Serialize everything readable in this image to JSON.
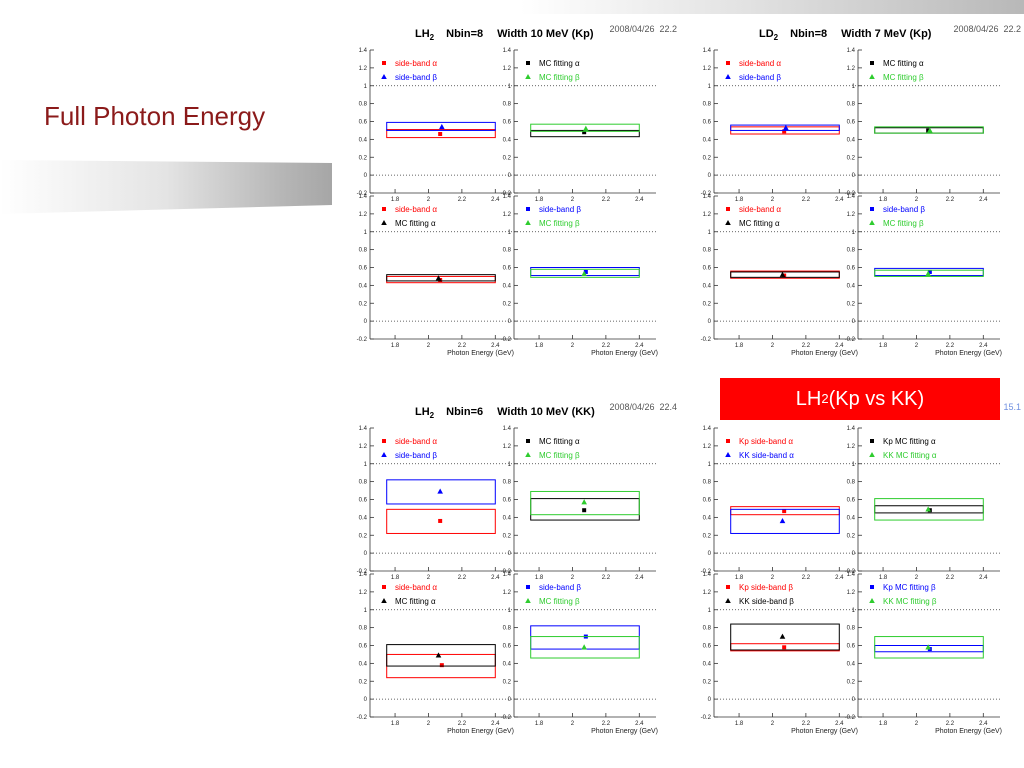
{
  "slide": {
    "title": "Full Photon Energy",
    "title_color": "#8b1a1a",
    "highlight": {
      "base": "LH",
      "sub": "2",
      "rest": "(Kp vs KK)",
      "background": "#ff0000"
    }
  },
  "chart_data": [
    {
      "type": "scatter",
      "title": {
        "base": "LH",
        "sub": "2",
        "nbin": "Nbin=8",
        "width": "Width 10 MeV (Kp)"
      },
      "timestamp": "2008/04/26  22.2",
      "timestamp_color": "#555555",
      "xlabel": "Photon Energy (GeV)",
      "xlim": [
        1.65,
        2.5
      ],
      "ylim": [
        -0.2,
        1.4
      ],
      "x_ticks": [
        "1.8",
        "2",
        "2.2",
        "2.4"
      ],
      "y_ticks": [
        "1.4",
        "1.2",
        "1",
        "0.8",
        "0.6",
        "0.4",
        "0.2",
        "0",
        "-0.2"
      ],
      "reference_lines_y": [
        0,
        1
      ],
      "band_x": [
        1.75,
        2.4
      ],
      "subplots": [
        {
          "position": "top-left",
          "series": [
            {
              "name": "side-band α",
              "color": "#ff0000",
              "marker": "square",
              "x": 2.07,
              "y": 0.46,
              "band": [
                0.42,
                0.51
              ]
            },
            {
              "name": "side-band β",
              "color": "#0000ff",
              "marker": "triangle",
              "x": 2.08,
              "y": 0.54,
              "band": [
                0.5,
                0.59
              ]
            }
          ]
        },
        {
          "position": "top-right",
          "series": [
            {
              "name": "MC fitting α",
              "color": "#000000",
              "marker": "square",
              "x": 2.07,
              "y": 0.48,
              "band": [
                0.43,
                0.5
              ]
            },
            {
              "name": "MC fitting β",
              "color": "#2ecc2e",
              "marker": "triangle",
              "x": 2.08,
              "y": 0.52,
              "band": [
                0.49,
                0.57
              ]
            }
          ]
        },
        {
          "position": "bottom-left",
          "series": [
            {
              "name": "side-band α",
              "color": "#ff0000",
              "marker": "square",
              "x": 2.07,
              "y": 0.46,
              "band": [
                0.43,
                0.5
              ]
            },
            {
              "name": "MC fitting α",
              "color": "#000000",
              "marker": "triangle",
              "x": 2.06,
              "y": 0.48,
              "band": [
                0.45,
                0.52
              ]
            }
          ]
        },
        {
          "position": "bottom-right",
          "series": [
            {
              "name": "side-band β",
              "color": "#0000ff",
              "marker": "square",
              "x": 2.08,
              "y": 0.55,
              "band": [
                0.51,
                0.6
              ]
            },
            {
              "name": "MC fitting β",
              "color": "#2ecc2e",
              "marker": "triangle",
              "x": 2.07,
              "y": 0.53,
              "band": [
                0.49,
                0.58
              ]
            }
          ]
        }
      ]
    },
    {
      "type": "scatter",
      "title": {
        "base": "LD",
        "sub": "2",
        "nbin": "Nbin=8",
        "width": "Width 7 MeV (Kp)"
      },
      "timestamp": "2008/04/26  22.2",
      "timestamp_color": "#555555",
      "xlabel": "Photon Energy (GeV)",
      "xlim": [
        1.65,
        2.5
      ],
      "ylim": [
        -0.2,
        1.4
      ],
      "x_ticks": [
        "1.8",
        "2",
        "2.2",
        "2.4"
      ],
      "y_ticks": [
        "1.4",
        "1.2",
        "1",
        "0.8",
        "0.6",
        "0.4",
        "0.2",
        "0",
        "-0.2"
      ],
      "reference_lines_y": [
        0,
        1
      ],
      "band_x": [
        1.75,
        2.4
      ],
      "subplots": [
        {
          "position": "top-left",
          "series": [
            {
              "name": "side-band α",
              "color": "#ff0000",
              "marker": "square",
              "x": 2.07,
              "y": 0.49,
              "band": [
                0.46,
                0.54
              ]
            },
            {
              "name": "side-band β",
              "color": "#0000ff",
              "marker": "triangle",
              "x": 2.08,
              "y": 0.53,
              "band": [
                0.5,
                0.56
              ]
            }
          ]
        },
        {
          "position": "top-right",
          "series": [
            {
              "name": "MC fitting α",
              "color": "#000000",
              "marker": "square",
              "x": 2.07,
              "y": 0.5,
              "band": [
                0.47,
                0.53
              ]
            },
            {
              "name": "MC fitting β",
              "color": "#2ecc2e",
              "marker": "triangle",
              "x": 2.08,
              "y": 0.5,
              "band": [
                0.47,
                0.54
              ]
            }
          ]
        },
        {
          "position": "bottom-left",
          "series": [
            {
              "name": "side-band α",
              "color": "#ff0000",
              "marker": "square",
              "x": 2.07,
              "y": 0.51,
              "band": [
                0.48,
                0.56
              ]
            },
            {
              "name": "MC fitting α",
              "color": "#000000",
              "marker": "triangle",
              "x": 2.06,
              "y": 0.52,
              "band": [
                0.49,
                0.55
              ]
            }
          ]
        },
        {
          "position": "bottom-right",
          "series": [
            {
              "name": "side-band β",
              "color": "#0000ff",
              "marker": "square",
              "x": 2.08,
              "y": 0.55,
              "band": [
                0.51,
                0.59
              ]
            },
            {
              "name": "MC fitting β",
              "color": "#2ecc2e",
              "marker": "triangle",
              "x": 2.07,
              "y": 0.53,
              "band": [
                0.5,
                0.57
              ]
            }
          ]
        }
      ]
    },
    {
      "type": "scatter",
      "title": {
        "base": "LH",
        "sub": "2",
        "nbin": "Nbin=6",
        "width": "Width 10 MeV (KK)"
      },
      "timestamp": "2008/04/26  22.4",
      "timestamp_color": "#555555",
      "xlabel": "Photon Energy (GeV)",
      "xlim": [
        1.65,
        2.5
      ],
      "ylim": [
        -0.2,
        1.4
      ],
      "x_ticks": [
        "1.8",
        "2",
        "2.2",
        "2.4"
      ],
      "y_ticks": [
        "1.4",
        "1.2",
        "1",
        "0.8",
        "0.6",
        "0.4",
        "0.2",
        "0",
        "-0.2"
      ],
      "reference_lines_y": [
        0,
        1
      ],
      "band_x": [
        1.75,
        2.4
      ],
      "subplots": [
        {
          "position": "top-left",
          "series": [
            {
              "name": "side-band α",
              "color": "#ff0000",
              "marker": "square",
              "x": 2.07,
              "y": 0.36,
              "band": [
                0.22,
                0.49
              ]
            },
            {
              "name": "side-band β",
              "color": "#0000ff",
              "marker": "triangle",
              "x": 2.07,
              "y": 0.69,
              "band": [
                0.55,
                0.82
              ]
            }
          ]
        },
        {
          "position": "top-right",
          "series": [
            {
              "name": "MC fitting α",
              "color": "#000000",
              "marker": "square",
              "x": 2.07,
              "y": 0.48,
              "band": [
                0.37,
                0.61
              ]
            },
            {
              "name": "MC fitting β",
              "color": "#2ecc2e",
              "marker": "triangle",
              "x": 2.07,
              "y": 0.57,
              "band": [
                0.43,
                0.69
              ]
            }
          ]
        },
        {
          "position": "bottom-left",
          "series": [
            {
              "name": "side-band α",
              "color": "#ff0000",
              "marker": "square",
              "x": 2.08,
              "y": 0.38,
              "band": [
                0.24,
                0.5
              ]
            },
            {
              "name": "MC fitting α",
              "color": "#000000",
              "marker": "triangle",
              "x": 2.06,
              "y": 0.49,
              "band": [
                0.37,
                0.61
              ]
            }
          ]
        },
        {
          "position": "bottom-right",
          "series": [
            {
              "name": "side-band β",
              "color": "#0000ff",
              "marker": "square",
              "x": 2.08,
              "y": 0.7,
              "band": [
                0.56,
                0.82
              ]
            },
            {
              "name": "MC fitting β",
              "color": "#2ecc2e",
              "marker": "triangle",
              "x": 2.07,
              "y": 0.58,
              "band": [
                0.46,
                0.7
              ]
            }
          ]
        }
      ]
    },
    {
      "type": "scatter",
      "timestamp": "15.1",
      "timestamp_color": "#7090e0",
      "xlabel": "Photon Energy (GeV)",
      "xlim": [
        1.65,
        2.5
      ],
      "ylim": [
        -0.2,
        1.4
      ],
      "x_ticks": [
        "1.8",
        "2",
        "2.2",
        "2.4"
      ],
      "y_ticks": [
        "1.4",
        "1.2",
        "1",
        "0.8",
        "0.6",
        "0.4",
        "0.2",
        "0",
        "-0.2"
      ],
      "reference_lines_y": [
        0,
        1
      ],
      "band_x": [
        1.75,
        2.4
      ],
      "subplots": [
        {
          "position": "top-left",
          "series": [
            {
              "name": "Kp side-band α",
              "color": "#ff0000",
              "marker": "square",
              "x": 2.07,
              "y": 0.47,
              "band": [
                0.43,
                0.52
              ]
            },
            {
              "name": "KK side-band α",
              "color": "#0000ff",
              "marker": "triangle",
              "x": 2.06,
              "y": 0.36,
              "band": [
                0.22,
                0.49
              ]
            }
          ]
        },
        {
          "position": "top-right",
          "series": [
            {
              "name": "Kp MC fitting α",
              "color": "#000000",
              "marker": "square",
              "x": 2.08,
              "y": 0.48,
              "band": [
                0.45,
                0.53
              ]
            },
            {
              "name": "KK MC fitting α",
              "color": "#2ecc2e",
              "marker": "triangle",
              "x": 2.07,
              "y": 0.49,
              "band": [
                0.37,
                0.61
              ]
            }
          ]
        },
        {
          "position": "bottom-left",
          "series": [
            {
              "name": "Kp side-band β",
              "color": "#ff0000",
              "marker": "square",
              "x": 2.07,
              "y": 0.58,
              "band": [
                0.54,
                0.62
              ]
            },
            {
              "name": "KK side-band β",
              "color": "#000000",
              "marker": "triangle",
              "x": 2.06,
              "y": 0.7,
              "band": [
                0.55,
                0.84
              ]
            }
          ]
        },
        {
          "position": "bottom-right",
          "series": [
            {
              "name": "Kp MC fitting β",
              "color": "#0000ff",
              "marker": "square",
              "x": 2.08,
              "y": 0.56,
              "band": [
                0.53,
                0.6
              ]
            },
            {
              "name": "KK MC fitting β",
              "color": "#2ecc2e",
              "marker": "triangle",
              "x": 2.07,
              "y": 0.58,
              "band": [
                0.46,
                0.7
              ]
            }
          ]
        }
      ]
    }
  ]
}
